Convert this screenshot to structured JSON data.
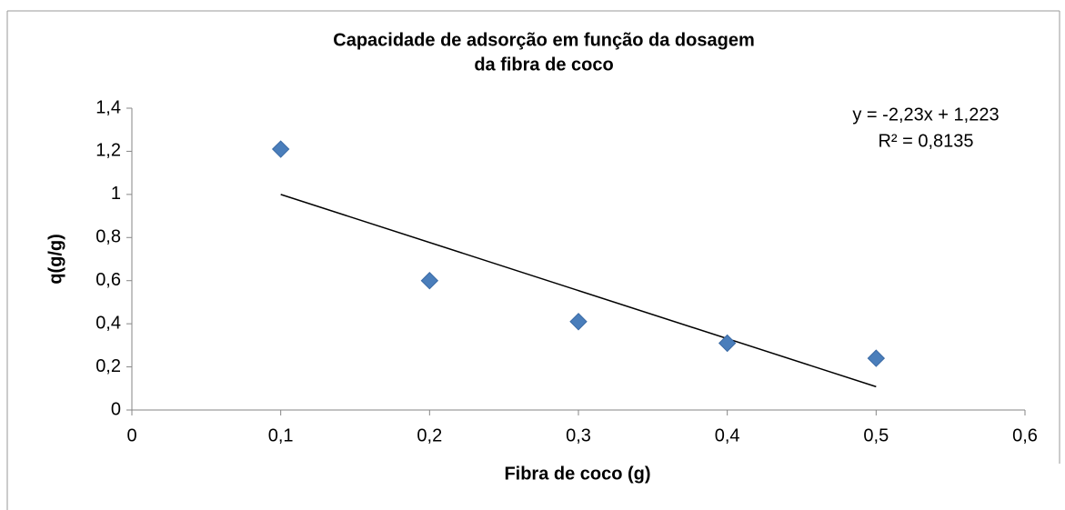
{
  "chart_data": {
    "type": "scatter",
    "title": [
      "Capacidade de adsorção em função da dosagem",
      "da fibra de coco"
    ],
    "x_label": "Fibra de coco (g)",
    "y_label": "q(g/g)",
    "x": [
      0.1,
      0.2,
      0.3,
      0.4,
      0.5
    ],
    "series": [
      {
        "name": "q",
        "color": "#4a7ebb",
        "values": [
          1.21,
          0.6,
          0.41,
          0.31,
          0.24
        ]
      }
    ],
    "trendline": {
      "slope": -2.23,
      "intercept": 1.223,
      "color": "#000000",
      "equation": "y = -2,23x + 1,223",
      "r_squared": "R² = 0,8135"
    },
    "xlim": [
      0,
      0.6
    ],
    "xticks": [
      0,
      {
        "value": 0.1,
        "label": "0,1"
      },
      {
        "value": 0.2,
        "label": "0,2"
      },
      {
        "value": 0.3,
        "label": "0,3"
      },
      {
        "value": 0.4,
        "label": "0,4"
      },
      {
        "value": 0.5,
        "label": "0,5"
      },
      {
        "value": 0.6,
        "label": "0,6"
      }
    ],
    "ylim": [
      0,
      1.4
    ],
    "yticks": [
      0,
      {
        "value": 0.2,
        "label": "0,2"
      },
      {
        "value": 0.4,
        "label": "0,4"
      },
      {
        "value": 0.6,
        "label": "0,6"
      },
      {
        "value": 0.8,
        "label": "0,8"
      },
      1,
      {
        "value": 1.2,
        "label": "1,2"
      },
      {
        "value": 1.4,
        "label": "1,4"
      }
    ],
    "grid": false
  }
}
